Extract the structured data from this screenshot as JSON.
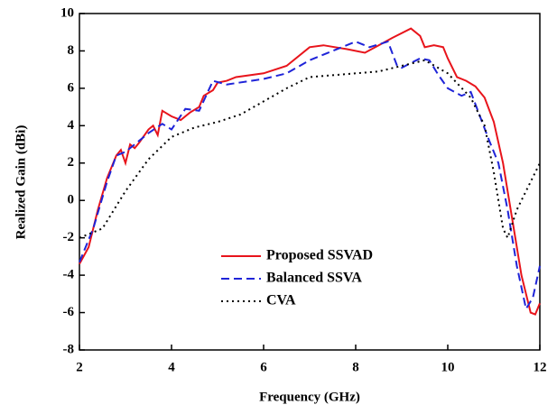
{
  "chart_data": {
    "type": "line",
    "xlabel": "Frequency (GHz)",
    "ylabel": "Realized Gain (dBi)",
    "xlim": [
      2,
      12
    ],
    "xticks": [
      2,
      4,
      6,
      8,
      10,
      12
    ],
    "ylim": [
      -8,
      10
    ],
    "yticks": [
      -8,
      -6,
      -4,
      -2,
      0,
      2,
      4,
      6,
      8,
      10
    ],
    "legend": "lower center",
    "series": [
      {
        "name": "Proposed SSVAD",
        "color": "#e8141b",
        "linestyle": "solid",
        "x": [
          2,
          2.2,
          2.4,
          2.6,
          2.8,
          2.9,
          3.0,
          3.1,
          3.2,
          3.3,
          3.5,
          3.6,
          3.7,
          3.8,
          4.0,
          4.2,
          4.4,
          4.6,
          4.7,
          4.9,
          5.0,
          5.2,
          5.4,
          6.0,
          6.5,
          7.0,
          7.3,
          7.8,
          8.2,
          8.5,
          8.8,
          9.2,
          9.4,
          9.5,
          9.7,
          9.9,
          10.0,
          10.2,
          10.4,
          10.6,
          10.8,
          11.0,
          11.2,
          11.4,
          11.6,
          11.8,
          11.9,
          12.0
        ],
        "values": [
          -3.4,
          -2.5,
          -0.5,
          1.2,
          2.4,
          2.7,
          2.0,
          3.0,
          2.8,
          3.1,
          3.8,
          4.0,
          3.5,
          4.8,
          4.5,
          4.3,
          4.7,
          5.0,
          5.6,
          5.9,
          6.3,
          6.4,
          6.6,
          6.8,
          7.2,
          8.2,
          8.3,
          8.1,
          7.9,
          8.3,
          8.7,
          9.2,
          8.8,
          8.2,
          8.3,
          8.2,
          7.6,
          6.6,
          6.4,
          6.1,
          5.5,
          4.2,
          2.0,
          -1.0,
          -4.0,
          -6.0,
          -6.1,
          -5.5
        ]
      },
      {
        "name": "Balanced SSVA",
        "color": "#1f24d8",
        "linestyle": "dashed",
        "x": [
          2,
          2.3,
          2.6,
          2.8,
          3.0,
          3.2,
          3.5,
          3.8,
          4.0,
          4.3,
          4.6,
          4.9,
          5.2,
          6.0,
          6.5,
          7.0,
          7.5,
          8.0,
          8.3,
          8.7,
          8.9,
          9.0,
          9.4,
          9.6,
          9.8,
          10.0,
          10.3,
          10.5,
          10.7,
          10.9,
          11.1,
          11.3,
          11.5,
          11.7,
          11.85,
          12.0
        ],
        "values": [
          -3.3,
          -1.5,
          1.0,
          2.4,
          2.6,
          3.0,
          3.6,
          4.1,
          3.8,
          4.9,
          4.8,
          6.4,
          6.2,
          6.5,
          6.8,
          7.5,
          8.0,
          8.5,
          8.2,
          8.5,
          7.2,
          7.1,
          7.6,
          7.5,
          6.7,
          6.0,
          5.6,
          5.8,
          4.5,
          3.2,
          2.0,
          -0.5,
          -3.5,
          -5.8,
          -5.2,
          -3.5
        ]
      },
      {
        "name": "CVA",
        "color": "#000000",
        "linestyle": "dotted",
        "x": [
          2,
          2.5,
          3.0,
          3.5,
          4.0,
          4.5,
          5.0,
          5.5,
          6.0,
          6.5,
          7.0,
          7.5,
          8.0,
          8.5,
          9.0,
          9.5,
          10.0,
          10.5,
          10.8,
          11.0,
          11.2,
          11.3,
          11.5,
          11.8,
          12.0
        ],
        "values": [
          -2.0,
          -1.5,
          0.5,
          2.2,
          3.4,
          3.9,
          4.2,
          4.6,
          5.3,
          6.0,
          6.6,
          6.7,
          6.8,
          6.9,
          7.2,
          7.5,
          6.8,
          5.5,
          4.0,
          1.5,
          -1.5,
          -2.0,
          -0.5,
          1.0,
          2.0
        ]
      }
    ]
  }
}
